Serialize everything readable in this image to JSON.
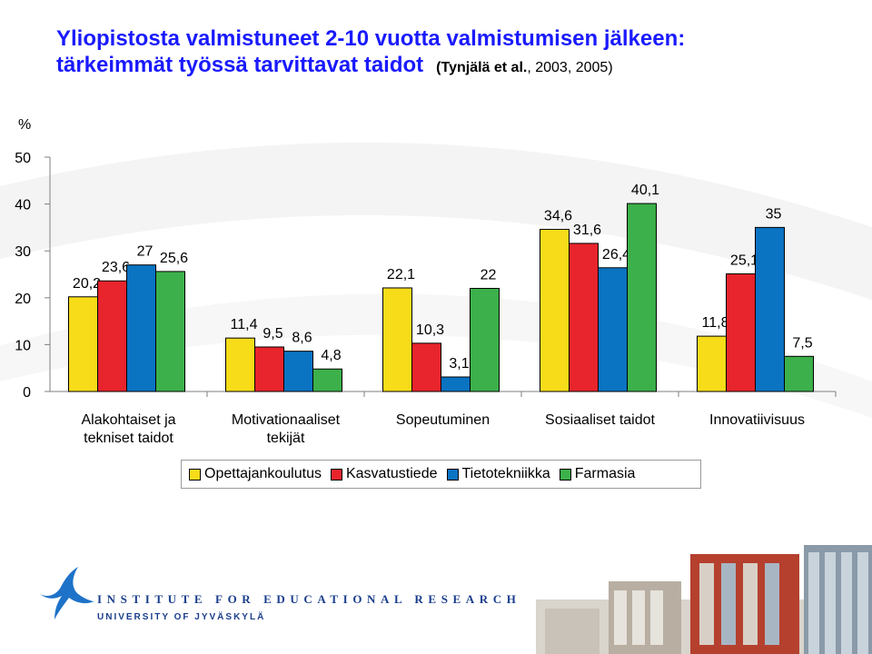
{
  "title": {
    "line1": "Yliopistosta valmistuneet 2-10 vuotta valmistumisen jälkeen:",
    "line2": "tärkeimmät työssä tarvittavat taidot",
    "citation": "(Tynjälä et al.",
    "citation_years": ", 2003, 2005)"
  },
  "chart_data": {
    "type": "bar",
    "ylabel": "%",
    "ylim": [
      0,
      50
    ],
    "yticks": [
      0,
      10,
      20,
      30,
      40,
      50
    ],
    "grid": false,
    "legend_position": "bottom",
    "categories": [
      "Alakohtaiset ja\ntekniset taidot",
      "Motivationaaliset\ntekijät",
      "Sopeutuminen",
      "Sosiaaliset taidot",
      "Innovatiivisuus"
    ],
    "series": [
      {
        "name": "Opettajankoulutus",
        "color": "#f7dc1a",
        "values": [
          20.2,
          11.4,
          22.1,
          34.6,
          11.8
        ],
        "labels": [
          "20,2",
          "11,4",
          "22,1",
          "34,6",
          "11,8"
        ]
      },
      {
        "name": "Kasvatustiede",
        "color": "#e8242c",
        "values": [
          23.6,
          9.5,
          10.3,
          31.6,
          25.1
        ],
        "labels": [
          "23,6",
          "9,5",
          "10,3",
          "31,6",
          "25,1"
        ]
      },
      {
        "name": "Tietotekniikka",
        "color": "#0a73c2",
        "values": [
          27,
          8.6,
          3.1,
          26.4,
          35
        ],
        "labels": [
          "27",
          "8,6",
          "3,1",
          "26,4",
          "35"
        ]
      },
      {
        "name": "Farmasia",
        "color": "#3cb04a",
        "values": [
          25.6,
          4.8,
          22,
          40.1,
          7.5
        ],
        "labels": [
          "25,6",
          "4,8",
          "22",
          "40,1",
          "7,5"
        ]
      }
    ]
  },
  "footer": {
    "institute": "INSTITUTE FOR EDUCATIONAL RESEARCH",
    "university": "UNIVERSITY OF JYVÄSKYLÄ"
  },
  "logo": {
    "color": "#1e72c8",
    "name": "jyu-bird-logo-icon"
  },
  "building_image": {
    "name": "university-building-photo"
  }
}
